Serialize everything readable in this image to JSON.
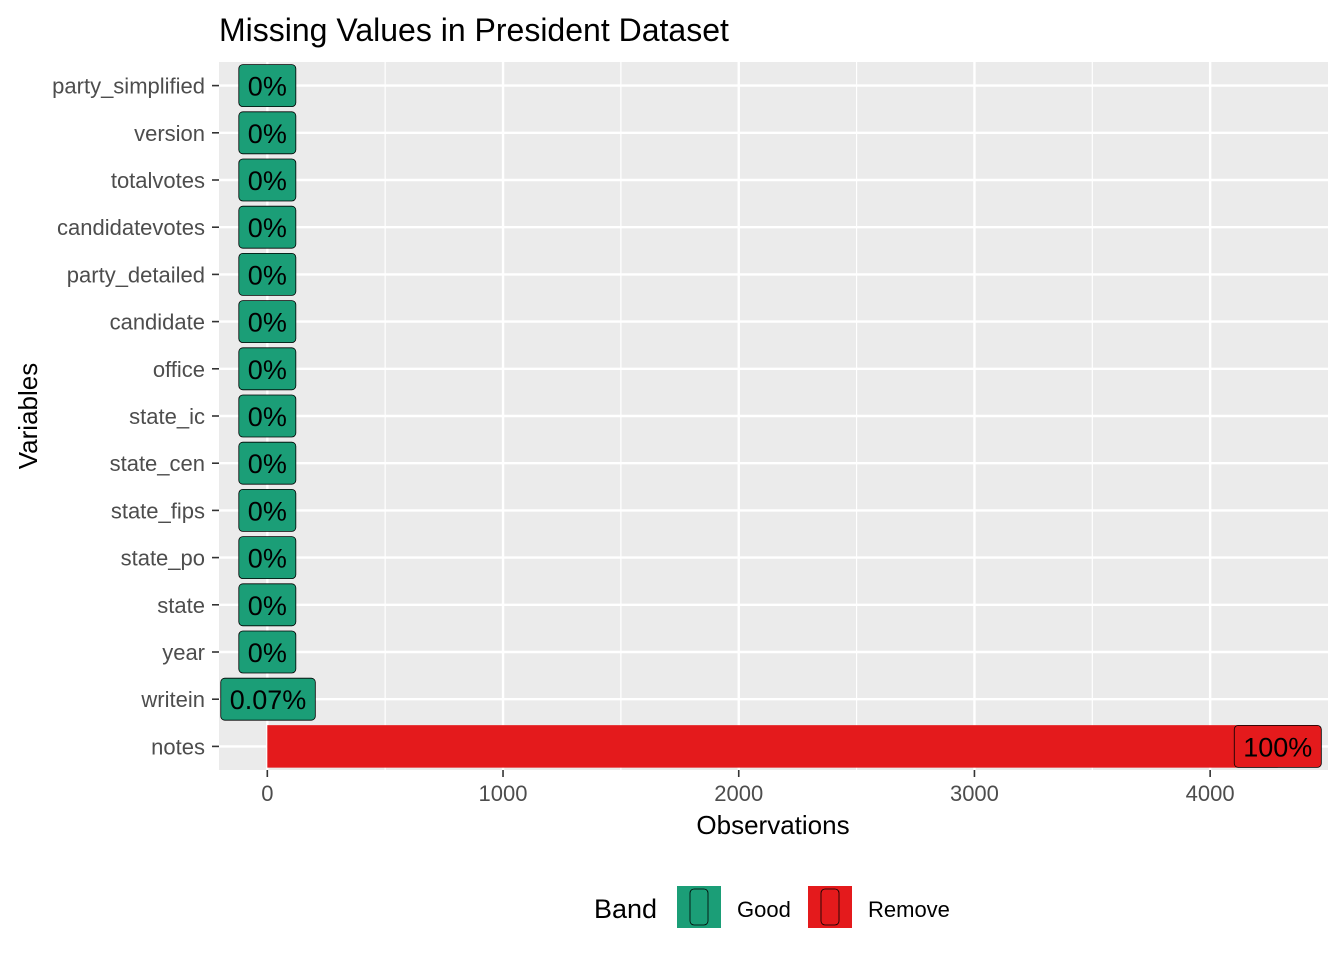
{
  "chart_data": {
    "type": "bar",
    "orientation": "horizontal",
    "title": "Missing Values in President Dataset",
    "xlabel": "Observations",
    "ylabel": "Variables",
    "xlim": [
      -205,
      4500
    ],
    "x_ticks": [
      0,
      1000,
      2000,
      3000,
      4000
    ],
    "grid": true,
    "categories": [
      "party_simplified",
      "version",
      "totalvotes",
      "candidatevotes",
      "party_detailed",
      "candidate",
      "office",
      "state_ic",
      "state_cen",
      "state_fips",
      "state_po",
      "state",
      "year",
      "writein",
      "notes"
    ],
    "values": [
      0,
      0,
      0,
      0,
      0,
      0,
      0,
      0,
      0,
      0,
      0,
      0,
      0,
      3,
      4287
    ],
    "labels": [
      "0%",
      "0%",
      "0%",
      "0%",
      "0%",
      "0%",
      "0%",
      "0%",
      "0%",
      "0%",
      "0%",
      "0%",
      "0%",
      "0.07%",
      "100%"
    ],
    "bands": [
      "Good",
      "Good",
      "Good",
      "Good",
      "Good",
      "Good",
      "Good",
      "Good",
      "Good",
      "Good",
      "Good",
      "Good",
      "Good",
      "Good",
      "Remove"
    ],
    "legend": {
      "title": "Band",
      "position": "bottom",
      "entries": [
        {
          "name": "Good",
          "color": "#1b9e77"
        },
        {
          "name": "Remove",
          "color": "#e41a1c"
        }
      ]
    },
    "colors": {
      "Good": "#1b9e77",
      "Remove": "#e41a1c",
      "panel": "#ebebeb",
      "grid": "#ffffff"
    }
  }
}
